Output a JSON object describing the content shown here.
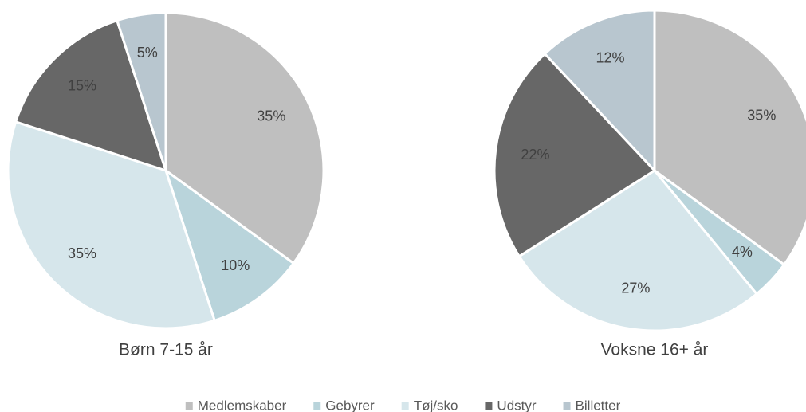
{
  "legend": {
    "categories": [
      "Medlemskaber",
      "Gebyrer",
      "Tøj/sko",
      "Udstyr",
      "Billetter"
    ],
    "colors": [
      "#bfbfbf",
      "#b9d4db",
      "#d6e6eb",
      "#676767",
      "#b8c6cf"
    ]
  },
  "chart_data": [
    {
      "type": "pie",
      "title": "Børn 7-15 år",
      "values": [
        35,
        10,
        35,
        15,
        5
      ],
      "value_labels": [
        "35%",
        "10%",
        "35%",
        "15%",
        "5%"
      ]
    },
    {
      "type": "pie",
      "title": "Voksne 16+ år",
      "values": [
        35,
        4,
        27,
        22,
        12
      ],
      "value_labels": [
        "35%",
        "4%",
        "27%",
        "22%",
        "12%"
      ]
    }
  ]
}
